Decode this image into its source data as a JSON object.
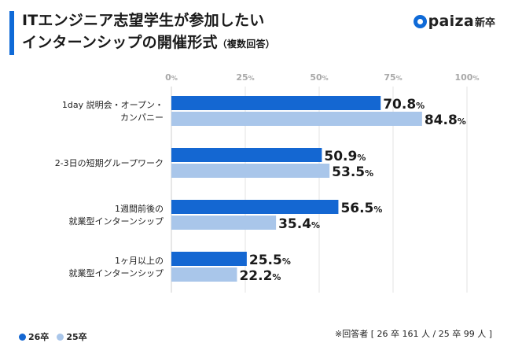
{
  "header": {
    "title_line1": "ITエンジニア志望学生が参加したい",
    "title_line2": "インターンシップの開催形式",
    "title_sub": "（複数回答）",
    "logo_word": "paiza",
    "logo_suffix": "新卒"
  },
  "colors": {
    "accent": "#0f6ad7",
    "series_26": "#1467d2",
    "series_25": "#a9c6ea",
    "grid": "#e3e3e3",
    "axis_label": "#a8a8a8",
    "text": "#222222"
  },
  "chart_data": {
    "type": "bar",
    "orientation": "horizontal",
    "title": "ITエンジニア志望学生が参加したいインターンシップの開催形式（複数回答）",
    "categories": [
      [
        "1day 説明会・オープン・",
        "カンパニー"
      ],
      [
        "2-3日の短期グループワーク"
      ],
      [
        "1週間前後の",
        "就業型インターンシップ"
      ],
      [
        "1ヶ月以上の",
        "就業型インターンシップ"
      ]
    ],
    "series": [
      {
        "name": "26卒",
        "values": [
          70.8,
          50.9,
          56.5,
          25.5
        ]
      },
      {
        "name": "25卒",
        "values": [
          84.8,
          53.5,
          35.4,
          22.2
        ]
      }
    ],
    "xlim": [
      0,
      100
    ],
    "xticks": [
      0,
      25,
      50,
      75,
      100
    ],
    "tick_unit": "%",
    "value_suffix": "%",
    "grid": true,
    "legend_position": "bottom-left"
  },
  "legend": {
    "items": [
      "26卒",
      "25卒"
    ]
  },
  "footnote": "※回答者 [ 26 卒 161 人 / 25 卒 99 人 ]"
}
